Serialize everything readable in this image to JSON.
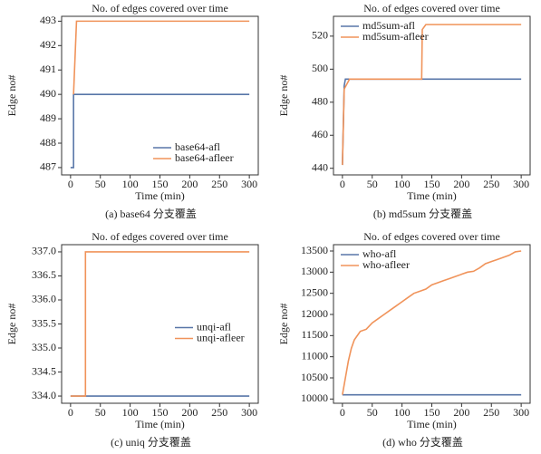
{
  "chart_data": [
    {
      "type": "line",
      "title": "No. of edges covered over time",
      "xlabel": "Time (min)",
      "ylabel": "Edge no#",
      "caption": "(a) base64 分支覆盖",
      "xlim": [
        -15,
        315
      ],
      "xticks": [
        0,
        50,
        100,
        150,
        200,
        250,
        300
      ],
      "ylim": [
        486.7,
        493.2
      ],
      "yticks": [
        487,
        488,
        489,
        490,
        491,
        492,
        493
      ],
      "legend": "lower right",
      "series": [
        {
          "name": "base64-afl",
          "color": "#5876a8",
          "x": [
            0,
            5,
            5,
            300
          ],
          "values": [
            487,
            487,
            490,
            490
          ]
        },
        {
          "name": "base64-afleer",
          "color": "#f0935a",
          "x": [
            5,
            10,
            300
          ],
          "values": [
            490,
            493,
            493
          ]
        }
      ]
    },
    {
      "type": "line",
      "title": "No. of edges covered over time",
      "xlabel": "Time (min)",
      "ylabel": "Edge no#",
      "caption": "(b) md5sum 分支覆盖",
      "xlim": [
        -15,
        315
      ],
      "xticks": [
        0,
        50,
        100,
        150,
        200,
        250,
        300
      ],
      "ylim": [
        436,
        532
      ],
      "yticks": [
        440,
        460,
        480,
        500,
        520
      ],
      "legend": "upper left",
      "series": [
        {
          "name": "md5sum-afl",
          "color": "#5876a8",
          "x": [
            0,
            3,
            5,
            300
          ],
          "values": [
            442,
            490,
            494,
            494
          ]
        },
        {
          "name": "md5sum-afleer",
          "color": "#f0935a",
          "x": [
            0,
            3,
            12,
            133,
            134,
            140,
            300
          ],
          "values": [
            442,
            488,
            494,
            494,
            524,
            527,
            527
          ]
        }
      ]
    },
    {
      "type": "line",
      "title": "No. of edges covered over time",
      "xlabel": "Time (min)",
      "ylabel": "Edge no#",
      "caption": "(c) uniq 分支覆盖",
      "xlim": [
        -15,
        315
      ],
      "xticks": [
        0,
        50,
        100,
        150,
        200,
        250,
        300
      ],
      "ylim": [
        333.85,
        337.15
      ],
      "yticks": [
        {
          "value": 334,
          "label": "334.0"
        },
        334.5,
        {
          "value": 335,
          "label": "335.0"
        },
        335.5,
        {
          "value": 336,
          "label": "336.0"
        },
        336.5,
        {
          "value": 337,
          "label": "337.0"
        }
      ],
      "legend": "center right",
      "series": [
        {
          "name": "unqi-afl",
          "color": "#5876a8",
          "x": [
            0,
            300
          ],
          "values": [
            334,
            334
          ]
        },
        {
          "name": "unqi-afleer",
          "color": "#f0935a",
          "x": [
            0,
            25,
            25,
            300
          ],
          "values": [
            334,
            334,
            337,
            337
          ]
        }
      ]
    },
    {
      "type": "line",
      "title": "No. of edges covered over time",
      "xlabel": "Time (min)",
      "ylabel": "Edge no#",
      "caption": "(d) who 分支覆盖",
      "xlim": [
        -15,
        315
      ],
      "xticks": [
        0,
        50,
        100,
        150,
        200,
        250,
        300
      ],
      "ylim": [
        9900,
        13650
      ],
      "yticks": [
        10000,
        10500,
        11000,
        11500,
        12000,
        12500,
        13000,
        13500
      ],
      "legend": "upper left",
      "series": [
        {
          "name": "who-afl",
          "color": "#5876a8",
          "x": [
            0,
            300
          ],
          "values": [
            10100,
            10100
          ]
        },
        {
          "name": "who-afleer",
          "color": "#f0935a",
          "x": [
            0,
            5,
            10,
            15,
            20,
            30,
            40,
            50,
            60,
            70,
            80,
            90,
            100,
            110,
            120,
            130,
            140,
            150,
            160,
            170,
            180,
            190,
            200,
            210,
            220,
            230,
            240,
            250,
            260,
            270,
            280,
            290,
            300
          ],
          "values": [
            10100,
            10500,
            10900,
            11200,
            11400,
            11600,
            11650,
            11800,
            11900,
            12000,
            12100,
            12200,
            12300,
            12400,
            12500,
            12550,
            12600,
            12700,
            12750,
            12800,
            12850,
            12900,
            12950,
            13000,
            13020,
            13100,
            13200,
            13250,
            13300,
            13350,
            13400,
            13480,
            13500
          ]
        }
      ]
    }
  ]
}
